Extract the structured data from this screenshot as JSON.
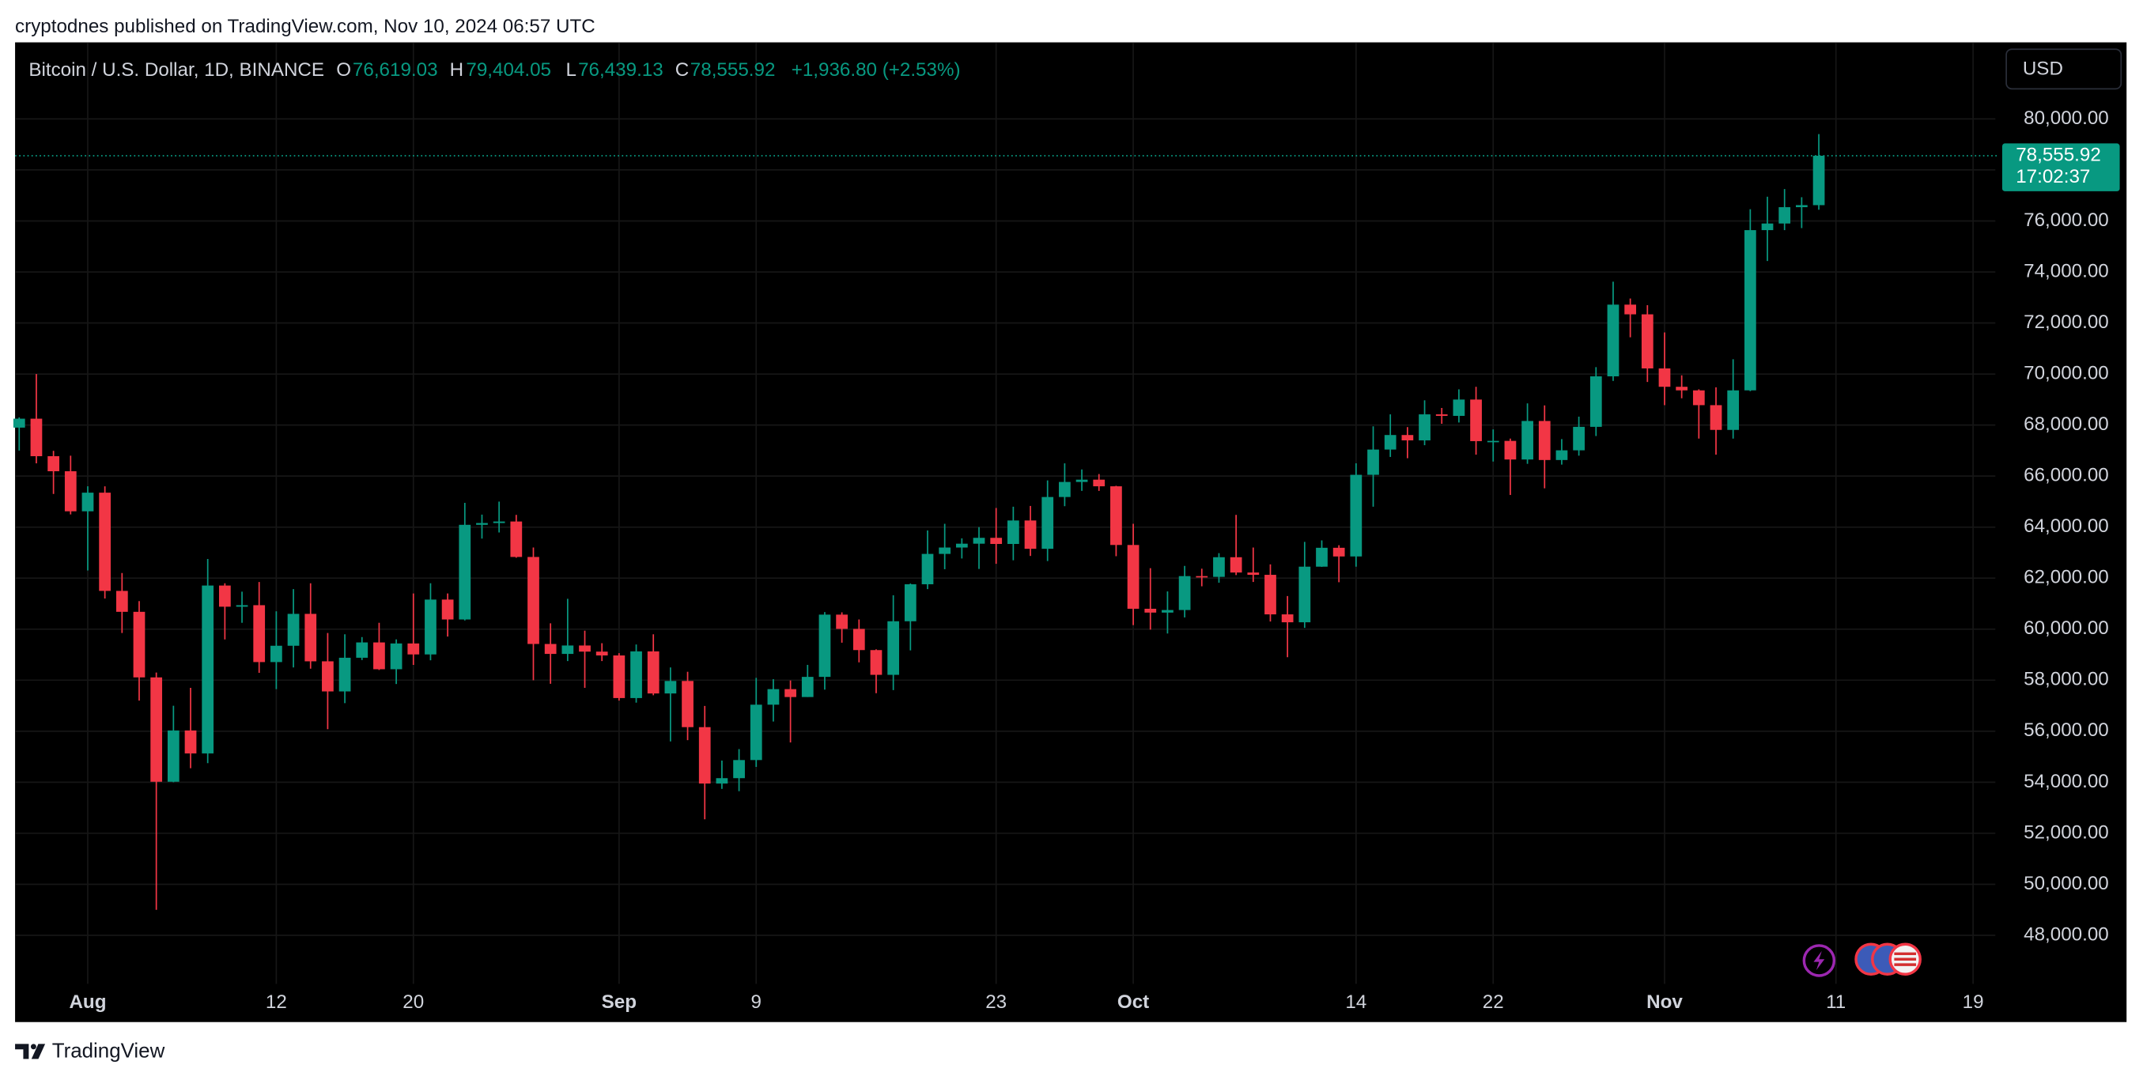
{
  "header": {
    "attribution": "cryptodnes published on TradingView.com, Nov 10, 2024 06:57 UTC"
  },
  "footer": {
    "brand": "TradingView"
  },
  "chart_data": {
    "type": "candlestick",
    "title": "Bitcoin / U.S. Dollar, 1D, BINANCE",
    "ohlc_legend": {
      "open_label": "O",
      "open": "76,619.03",
      "high_label": "H",
      "high": "79,404.05",
      "low_label": "L",
      "low": "76,439.13",
      "close_label": "C",
      "close": "78,555.92",
      "change": "+1,936.80 (+2.53%)"
    },
    "currency_button": "USD",
    "last_price_label": "78,555.92",
    "countdown": "17:02:37",
    "up_color": "#089981",
    "down_color": "#f23645",
    "grid": true,
    "xlim": [
      -0.24,
      115.3
    ],
    "xticks": [
      {
        "value": 4,
        "label": "Aug"
      },
      {
        "value": 15,
        "label": "12"
      },
      {
        "value": 23,
        "label": "20"
      },
      {
        "value": 35,
        "label": "Sep"
      },
      {
        "value": 43,
        "label": "9"
      },
      {
        "value": 57,
        "label": "23"
      },
      {
        "value": 65,
        "label": "Oct"
      },
      {
        "value": 78,
        "label": "14"
      },
      {
        "value": 86,
        "label": "22"
      },
      {
        "value": 96,
        "label": "Nov"
      },
      {
        "value": 106,
        "label": "11"
      },
      {
        "value": 114,
        "label": "19"
      }
    ],
    "ylim": [
      46100,
      83000
    ],
    "yticks": [
      {
        "value": 48000,
        "label": "48,000.00"
      },
      {
        "value": 50000,
        "label": "50,000.00"
      },
      {
        "value": 52000,
        "label": "52,000.00"
      },
      {
        "value": 54000,
        "label": "54,000.00"
      },
      {
        "value": 56000,
        "label": "56,000.00"
      },
      {
        "value": 58000,
        "label": "58,000.00"
      },
      {
        "value": 60000,
        "label": "60,000.00"
      },
      {
        "value": 62000,
        "label": "62,000.00"
      },
      {
        "value": 64000,
        "label": "64,000.00"
      },
      {
        "value": 66000,
        "label": "66,000.00"
      },
      {
        "value": 68000,
        "label": "68,000.00"
      },
      {
        "value": 70000,
        "label": "70,000.00"
      },
      {
        "value": 72000,
        "label": "72,000.00"
      },
      {
        "value": 74000,
        "label": "74,000.00"
      },
      {
        "value": 76000,
        "label": "76,000.00"
      },
      {
        "value": 78000,
        "label": "78,000.00"
      },
      {
        "value": 80000,
        "label": "80,000.00"
      }
    ],
    "open": [
      67900,
      68250,
      66780,
      66190,
      64620,
      65350,
      61500,
      60680,
      58110,
      54020,
      56030,
      55130,
      61710,
      60880,
      60940,
      58710,
      59350,
      60600,
      58740,
      57560,
      58880,
      59480,
      58430,
      59440,
      59010,
      61160,
      60380,
      64090,
      64160,
      64220,
      62830,
      59420,
      59030,
      59360,
      59120,
      58970,
      57300,
      59130,
      57480,
      57970,
      56160,
      53950,
      54160,
      54870,
      57040,
      57650,
      57340,
      58130,
      60570,
      60010,
      59180,
      58210,
      60310,
      61760,
      62950,
      63200,
      63350,
      63580,
      63340,
      64260,
      63150,
      65180,
      65770,
      65860,
      65600,
      63300,
      60800,
      60650,
      60750,
      62080,
      62050,
      62820,
      62220,
      62130,
      60580,
      60270,
      62450,
      63190,
      62850,
      66050,
      67040,
      67610,
      67400,
      68420,
      68360,
      69000,
      67370,
      67380,
      66650,
      68160,
      66630,
      67010,
      67930,
      69910,
      72720,
      72340,
      70220,
      69500,
      69360,
      68780,
      67810,
      69360,
      75640,
      75900,
      76540,
      76619.03
    ],
    "high": [
      68300,
      70000,
      66990,
      66800,
      65600,
      65600,
      62200,
      61100,
      58300,
      57000,
      57700,
      62750,
      61800,
      61470,
      61850,
      60700,
      61570,
      61800,
      59850,
      59800,
      59690,
      60250,
      59600,
      61400,
      61800,
      61400,
      64950,
      64490,
      65000,
      64480,
      63200,
      60230,
      61190,
      59940,
      59450,
      59060,
      59400,
      59800,
      58500,
      58330,
      56990,
      54850,
      55300,
      58090,
      58040,
      57990,
      58600,
      60670,
      60660,
      60380,
      59210,
      61330,
      61790,
      63870,
      64130,
      63560,
      64000,
      64750,
      64800,
      64830,
      65830,
      66500,
      66260,
      66080,
      65620,
      64130,
      62390,
      61480,
      62480,
      62370,
      62980,
      64480,
      63200,
      62540,
      61300,
      63420,
      63480,
      63290,
      66500,
      67950,
      68420,
      67920,
      68970,
      68670,
      69400,
      69500,
      67830,
      67470,
      68850,
      68770,
      67450,
      68330,
      70270,
      73620,
      72960,
      72700,
      71630,
      69950,
      69400,
      69480,
      70580,
      76460,
      76950,
      77250,
      76930,
      79404.05
    ],
    "low": [
      67000,
      66500,
      65300,
      64500,
      62300,
      61200,
      59850,
      57200,
      49000,
      54000,
      54550,
      54750,
      59600,
      60250,
      58290,
      57650,
      58500,
      58450,
      56080,
      57100,
      58790,
      58400,
      57850,
      58600,
      58780,
      59710,
      60340,
      63550,
      63790,
      62800,
      58000,
      57860,
      58750,
      57700,
      58750,
      57200,
      57120,
      57410,
      55600,
      55650,
      52550,
      53740,
      53650,
      54600,
      56380,
      55560,
      57340,
      57630,
      59470,
      58700,
      57490,
      57610,
      59170,
      61570,
      62350,
      62770,
      62360,
      62560,
      62700,
      62870,
      62670,
      64820,
      65420,
      65420,
      62860,
      60160,
      59980,
      59830,
      60460,
      61680,
      61820,
      62120,
      61850,
      60300,
      58900,
      60050,
      62440,
      61840,
      62450,
      64800,
      66750,
      66700,
      67210,
      68050,
      68100,
      66840,
      66570,
      65260,
      66480,
      65520,
      66450,
      66800,
      67570,
      69730,
      71440,
      69690,
      68780,
      69050,
      67470,
      66840,
      67470,
      69330,
      74430,
      75640,
      75720,
      76439.13
    ],
    "close": [
      68250,
      66780,
      66190,
      64620,
      65350,
      61500,
      60680,
      58110,
      54020,
      56030,
      55130,
      61710,
      60880,
      60940,
      58710,
      59350,
      60600,
      58740,
      57560,
      58880,
      59480,
      58430,
      59440,
      59010,
      61160,
      60380,
      64090,
      64160,
      64220,
      62830,
      59420,
      59030,
      59360,
      59120,
      58970,
      57300,
      59130,
      57480,
      57970,
      56160,
      53950,
      54160,
      54870,
      57040,
      57650,
      57340,
      58130,
      60570,
      60010,
      59180,
      58210,
      60310,
      61760,
      62950,
      63200,
      63350,
      63580,
      63340,
      64260,
      63150,
      65180,
      65770,
      65860,
      65600,
      63300,
      60800,
      60650,
      60750,
      62080,
      62050,
      62820,
      62220,
      62130,
      60580,
      60270,
      62450,
      63190,
      62850,
      66050,
      67040,
      67610,
      67400,
      68420,
      68360,
      69000,
      67370,
      67380,
      66650,
      68160,
      66630,
      67010,
      67930,
      69910,
      72720,
      72340,
      70220,
      69500,
      69360,
      68780,
      67810,
      69360,
      75640,
      75900,
      76540,
      76620,
      78555.92
    ]
  }
}
